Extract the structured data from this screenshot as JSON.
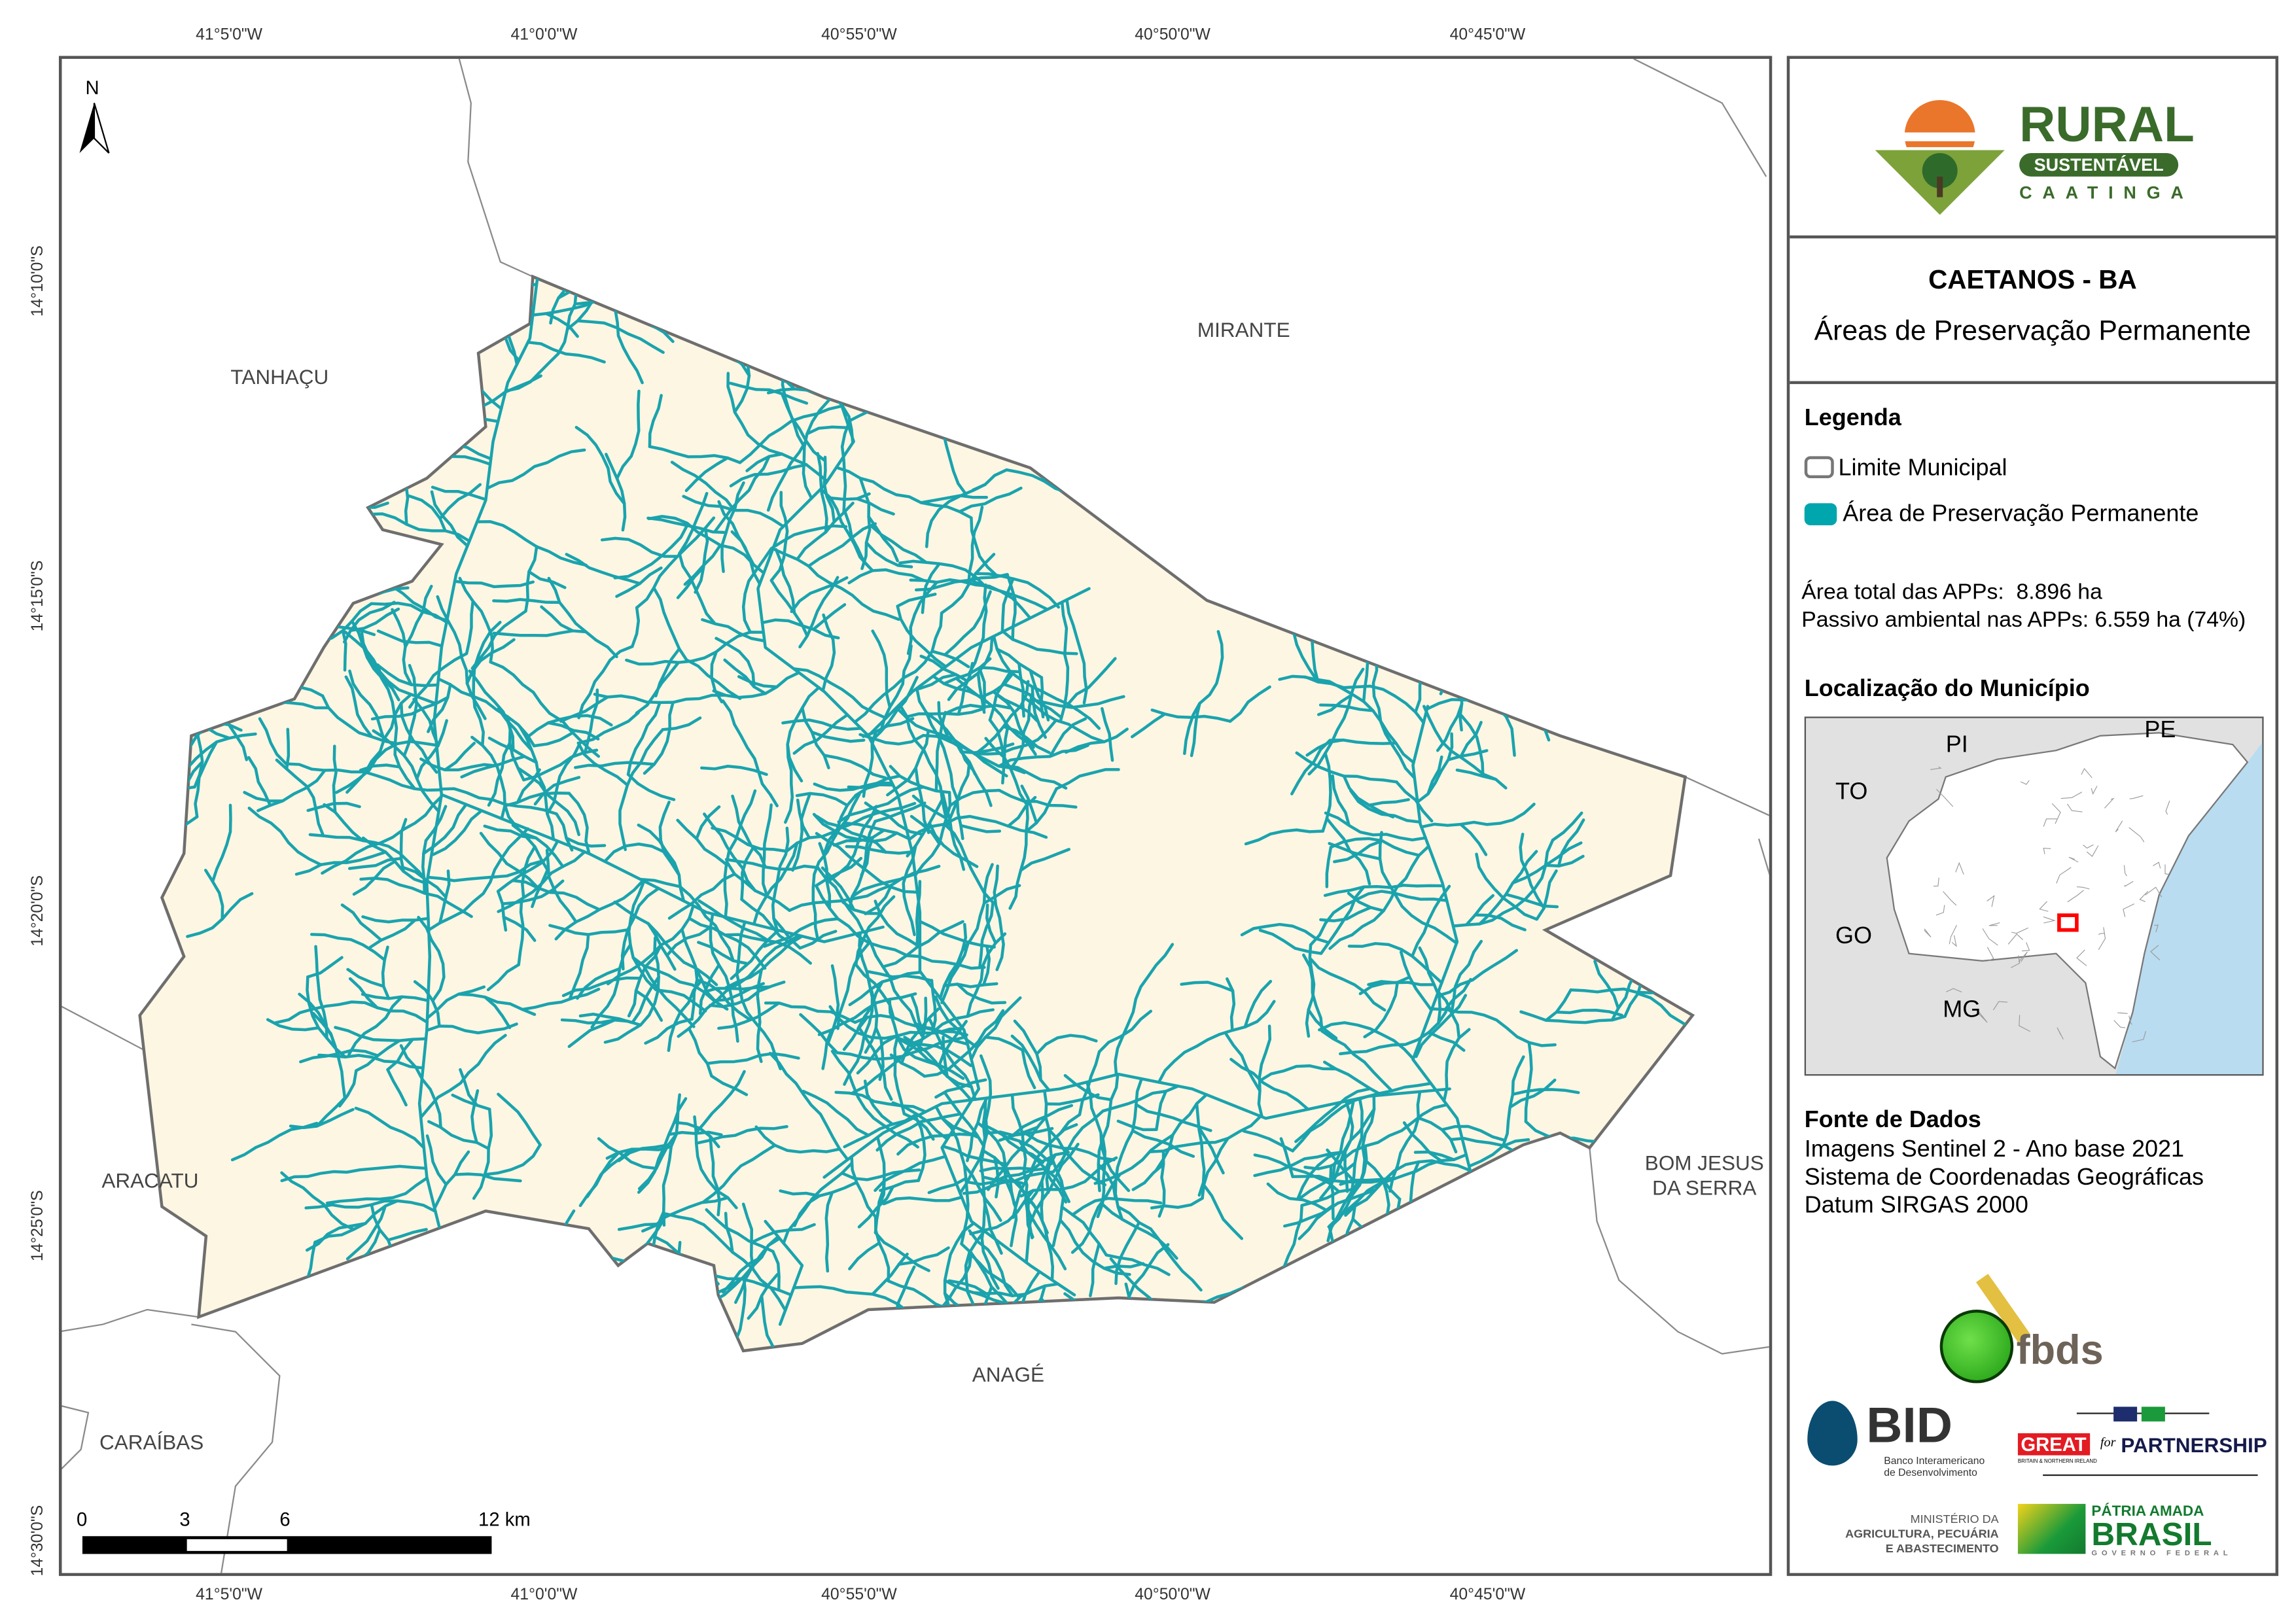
{
  "map": {
    "top_ticks": [
      "41°5'0\"W",
      "41°0'0\"W",
      "40°55'0\"W",
      "40°50'0\"W",
      "40°45'0\"W"
    ],
    "bottom_ticks": [
      "41°5'0\"W",
      "41°0'0\"W",
      "40°55'0\"W",
      "40°50'0\"W",
      "40°45'0\"W"
    ],
    "left_ticks": [
      "14°10'0\"S",
      "14°15'0\"S",
      "14°20'0\"S",
      "14°25'0\"S",
      "14°30'0\"S"
    ],
    "north_label": "N",
    "neighbors": {
      "tanhacu": "TANHAÇU",
      "mirante": "MIRANTE",
      "aracatu": "ARACATU",
      "bom_jesus_1": "BOM JESUS",
      "bom_jesus_2": "DA SERRA",
      "anage": "ANAGÉ",
      "caraibas": "CARAÍBAS"
    },
    "scale_labels": [
      "0",
      "3",
      "6",
      "12 km"
    ],
    "colors": {
      "municipality_fill": "#fdf6e3",
      "boundary": "#6e6e6e",
      "app": "#1aa3ad",
      "neighbor_line": "#8a8a8a"
    }
  },
  "panel": {
    "logo": {
      "rural": "RURAL",
      "sustentavel": "SUSTENTÁVEL",
      "caatinga": "CAATINGA"
    },
    "title": "CAETANOS - BA",
    "subtitle": "Áreas de Preservação Permanente",
    "legend": {
      "heading": "Legenda",
      "items": [
        {
          "label": "Limite Municipal",
          "symbol": "outline"
        },
        {
          "label": "Área de Preservação Permanente",
          "symbol": "fill",
          "color": "#00a6ad"
        }
      ]
    },
    "stats": {
      "total_label": "Área total das APPs:",
      "total_value": "8.896 ha",
      "passivo_label": "Passivo ambiental nas APPs:",
      "passivo_value": "6.559 ha (74%)"
    },
    "location": {
      "heading": "Localização do Município",
      "states": [
        "PI",
        "PE",
        "TO",
        "GO",
        "MG"
      ],
      "colors": {
        "ocean": "#b9dcf0",
        "land": "#e1e1e1",
        "state": "#ffffff",
        "highlight": "#ff0000"
      }
    },
    "sources": {
      "heading": "Fonte de Dados",
      "lines": [
        "Imagens Sentinel 2 - Ano base 2021",
        "Sistema de Coordenadas Geográficas",
        "Datum SIRGAS 2000"
      ]
    },
    "logos": {
      "fbds": "fbds",
      "bid": "BID",
      "bid_sub1": "Banco Interamericano",
      "bid_sub2": "de Desenvolvimento",
      "great": "GREAT",
      "great_sub": "BRITAIN & NORTHERN IRELAND",
      "for": "for",
      "partnership": "PARTNERSHIP",
      "min1": "MINISTÉRIO DA",
      "min2": "AGRICULTURA, PECUÁRIA",
      "min3": "E ABASTECIMENTO",
      "patria": "PÁTRIA AMADA",
      "brasil": "BRASIL",
      "governo": "GOVERNO FEDERAL"
    }
  }
}
